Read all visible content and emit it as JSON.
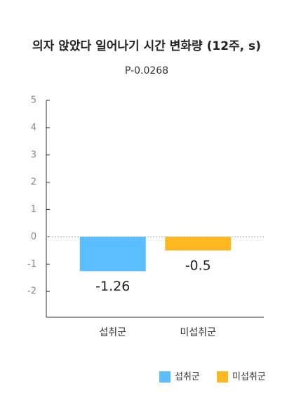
{
  "chart_data": {
    "type": "bar",
    "title": "의자 앉았다 일어나기 시간 변화량 (12주, s)",
    "subtitle": "P-0.0268",
    "categories": [
      "섭취군",
      "미섭취군"
    ],
    "series": [
      {
        "name": "섭취군",
        "color": "#5bbfff",
        "values": [
          -1.26,
          null
        ]
      },
      {
        "name": "미섭취군",
        "color": "#ffb81f",
        "values": [
          null,
          -0.5
        ]
      }
    ],
    "ylim": [
      -3,
      5
    ],
    "yticks": [
      -2,
      -1,
      0,
      1,
      2,
      3,
      4,
      5
    ],
    "legend": "bottom-right"
  }
}
